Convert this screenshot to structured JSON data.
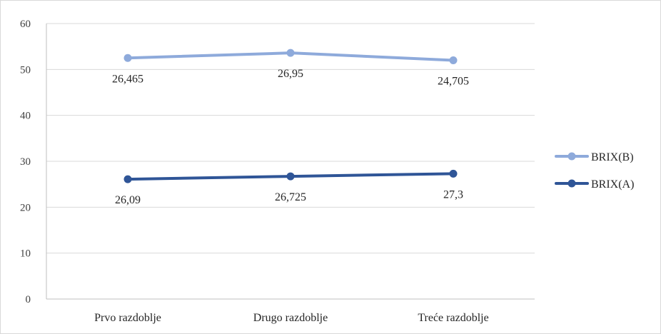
{
  "chart_data": {
    "type": "line",
    "title": "",
    "xlabel": "",
    "ylabel": "",
    "categories": [
      "Prvo razdoblje",
      "Drugo razdoblje",
      "Treće razdoblje"
    ],
    "ylim": [
      0,
      60
    ],
    "yticks": [
      0,
      10,
      20,
      30,
      40,
      50,
      60
    ],
    "grid": true,
    "legend_position": "right",
    "series": [
      {
        "name": "BRIX(B)",
        "color": "#8eaadb",
        "values": [
          52.5,
          53.6,
          52.0
        ],
        "labels": [
          "26,465",
          "26,95",
          "24,705"
        ]
      },
      {
        "name": "BRIX(A)",
        "color": "#2f5597",
        "values": [
          26.09,
          26.725,
          27.3
        ],
        "labels": [
          "26,09",
          "26,725",
          "27,3"
        ]
      }
    ]
  }
}
